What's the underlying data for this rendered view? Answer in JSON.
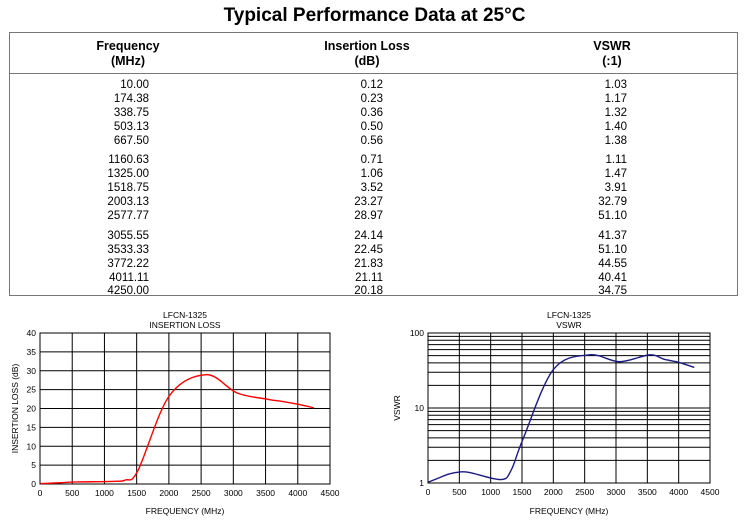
{
  "title": "Typical Performance Data at 25°C",
  "table": {
    "headers": [
      [
        "Frequency",
        "(MHz)"
      ],
      [
        "Insertion Loss",
        "(dB)"
      ],
      [
        "VSWR",
        "(:1)"
      ]
    ],
    "rows": [
      [
        "10.00",
        "0.12",
        "1.03"
      ],
      [
        "174.38",
        "0.23",
        "1.17"
      ],
      [
        "338.75",
        "0.36",
        "1.32"
      ],
      [
        "503.13",
        "0.50",
        "1.40"
      ],
      [
        "667.50",
        "0.56",
        "1.38"
      ],
      [
        "1160.63",
        "0.71",
        "1.11"
      ],
      [
        "1325.00",
        "1.06",
        "1.47"
      ],
      [
        "1518.75",
        "3.52",
        "3.91"
      ],
      [
        "2003.13",
        "23.27",
        "32.79"
      ],
      [
        "2577.77",
        "28.97",
        "51.10"
      ],
      [
        "3055.55",
        "24.14",
        "41.37"
      ],
      [
        "3533.33",
        "22.45",
        "51.10"
      ],
      [
        "3772.22",
        "21.83",
        "44.55"
      ],
      [
        "4011.11",
        "21.11",
        "40.41"
      ],
      [
        "4250.00",
        "20.18",
        "34.75"
      ]
    ]
  },
  "chart_data": [
    {
      "type": "line",
      "title": "LFCN-1325",
      "subtitle": "INSERTION LOSS",
      "xlabel": "FREQUENCY (MHz)",
      "ylabel": "INSERTION LOSS (dB)",
      "xlim": [
        0,
        4500
      ],
      "ylim": [
        0,
        40
      ],
      "xticks": [
        "0",
        "500",
        "1000",
        "1500",
        "2000",
        "2500",
        "3000",
        "3500",
        "4000",
        "4500"
      ],
      "yticks": [
        "0",
        "5",
        "10",
        "15",
        "20",
        "25",
        "30",
        "35",
        "40"
      ],
      "grid": true,
      "color": "#ff0000",
      "x": [
        10,
        174.38,
        338.75,
        503.13,
        667.5,
        1160.63,
        1325,
        1518.75,
        2003.13,
        2577.77,
        3055.55,
        3533.33,
        3772.22,
        4011.11,
        4250
      ],
      "y": [
        0.12,
        0.23,
        0.36,
        0.5,
        0.56,
        0.71,
        1.06,
        3.52,
        23.27,
        28.97,
        24.14,
        22.45,
        21.83,
        21.11,
        20.18
      ]
    },
    {
      "type": "line",
      "title": "LFCN-1325",
      "subtitle": "VSWR",
      "xlabel": "FREQUENCY (MHz)",
      "ylabel": "VSWR",
      "xlim": [
        0,
        4500
      ],
      "ylim": [
        1,
        100
      ],
      "yscale": "log",
      "xticks": [
        "0",
        "500",
        "1000",
        "1500",
        "2000",
        "2500",
        "3000",
        "3500",
        "4000",
        "4500"
      ],
      "yticks": [
        "1",
        "10",
        "100"
      ],
      "grid": true,
      "color": "#1a1a80",
      "x": [
        10,
        174.38,
        338.75,
        503.13,
        667.5,
        1160.63,
        1325,
        1518.75,
        2003.13,
        2577.77,
        3055.55,
        3533.33,
        3772.22,
        4011.11,
        4250
      ],
      "y": [
        1.03,
        1.17,
        1.32,
        1.4,
        1.38,
        1.11,
        1.47,
        3.91,
        32.79,
        51.1,
        41.37,
        51.1,
        44.55,
        40.41,
        34.75
      ]
    }
  ]
}
